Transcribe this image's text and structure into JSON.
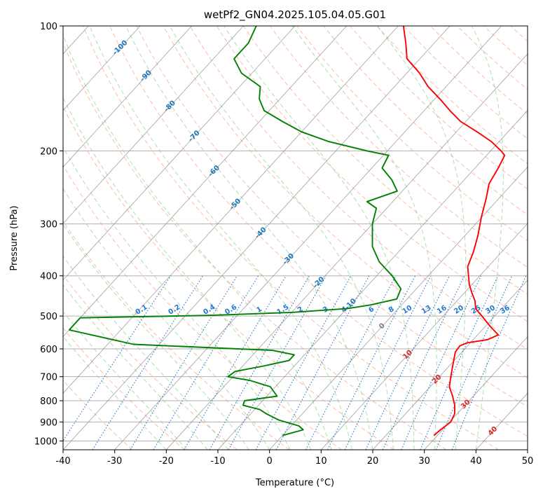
{
  "chart_data": {
    "type": "line",
    "subtype": "skew-t log-p",
    "title": "wetPf2_GN04.2025.105.04.05.G01",
    "xlabel": "Temperature (°C)",
    "ylabel": "Pressure (hPa)",
    "xlim": [
      -40,
      50
    ],
    "ylim": [
      1050,
      100
    ],
    "y_scale": "log",
    "grid": true,
    "x_ticks": [
      -40,
      -30,
      -20,
      -10,
      0,
      10,
      20,
      30,
      40,
      50
    ],
    "y_ticks": [
      100,
      200,
      300,
      400,
      500,
      600,
      700,
      800,
      900,
      1000
    ],
    "series": [
      {
        "role": "temperature",
        "color": "#ff0000",
        "points": [
          [
            29.3,
            970
          ],
          [
            29.6,
            940
          ],
          [
            30.2,
            900
          ],
          [
            29.5,
            860
          ],
          [
            28.0,
            820
          ],
          [
            26.0,
            780
          ],
          [
            23.7,
            740
          ],
          [
            22.2,
            700
          ],
          [
            20.3,
            650
          ],
          [
            18.7,
            610
          ],
          [
            18.5,
            590
          ],
          [
            19.4,
            580
          ],
          [
            22.8,
            570
          ],
          [
            24.0,
            555
          ],
          [
            21.0,
            530
          ],
          [
            17.5,
            500
          ],
          [
            15.0,
            480
          ],
          [
            13.5,
            460
          ],
          [
            11.5,
            440
          ],
          [
            9.5,
            420
          ],
          [
            7.8,
            400
          ],
          [
            6.0,
            380
          ],
          [
            4.5,
            350
          ],
          [
            2.5,
            320
          ],
          [
            0.0,
            290
          ],
          [
            -2.5,
            260
          ],
          [
            -4.5,
            240
          ],
          [
            -5.5,
            220
          ],
          [
            -6.5,
            205
          ],
          [
            -8.0,
            200
          ],
          [
            -11.5,
            190
          ],
          [
            -16.0,
            180
          ],
          [
            -21.0,
            170
          ],
          [
            -25.0,
            160
          ],
          [
            -29.0,
            150
          ],
          [
            -33.5,
            140
          ],
          [
            -37.5,
            130
          ],
          [
            -42.5,
            120
          ],
          [
            -45.5,
            110
          ],
          [
            -49.0,
            100
          ]
        ]
      },
      {
        "role": "dewpoint",
        "color": "#008000",
        "points": [
          [
            0.0,
            970
          ],
          [
            3.0,
            940
          ],
          [
            1.5,
            920
          ],
          [
            -3.5,
            890
          ],
          [
            -7.0,
            860
          ],
          [
            -9.0,
            840
          ],
          [
            -13.0,
            820
          ],
          [
            -13.5,
            800
          ],
          [
            -8.0,
            780
          ],
          [
            -11.0,
            740
          ],
          [
            -16.0,
            715
          ],
          [
            -21.0,
            700
          ],
          [
            -20.5,
            680
          ],
          [
            -16.0,
            660
          ],
          [
            -12.0,
            640
          ],
          [
            -12.0,
            620
          ],
          [
            -17.0,
            605
          ],
          [
            -45.0,
            585
          ],
          [
            -60.0,
            540
          ],
          [
            -60.0,
            505
          ],
          [
            -35.0,
            498
          ],
          [
            -20.0,
            490
          ],
          [
            -10.0,
            480
          ],
          [
            -6.0,
            470
          ],
          [
            -2.0,
            455
          ],
          [
            -3.0,
            430
          ],
          [
            -7.0,
            400
          ],
          [
            -12.0,
            370
          ],
          [
            -16.0,
            340
          ],
          [
            -20.0,
            300
          ],
          [
            -22.0,
            275
          ],
          [
            -25.0,
            265
          ],
          [
            -21.0,
            250
          ],
          [
            -24.0,
            235
          ],
          [
            -28.0,
            220
          ],
          [
            -29.0,
            205
          ],
          [
            -34.0,
            200
          ],
          [
            -43.0,
            190
          ],
          [
            -50.0,
            180
          ],
          [
            -55.5,
            170
          ],
          [
            -61.0,
            160
          ],
          [
            -64.0,
            150
          ],
          [
            -66.0,
            140
          ],
          [
            -72.0,
            130
          ],
          [
            -76.0,
            120
          ],
          [
            -76.0,
            110
          ],
          [
            -77.5,
            100
          ]
        ]
      }
    ],
    "isotherm_labels": [
      {
        "t": -100,
        "p": 112
      },
      {
        "t": -90,
        "p": 131
      },
      {
        "t": -80,
        "p": 155
      },
      {
        "t": -70,
        "p": 183
      },
      {
        "t": -60,
        "p": 222
      },
      {
        "t": -50,
        "p": 267
      },
      {
        "t": -40,
        "p": 313
      },
      {
        "t": -30,
        "p": 362
      },
      {
        "t": -20,
        "p": 412
      },
      {
        "t": -10,
        "p": 465
      },
      {
        "t": 0,
        "p": 525
      },
      {
        "t": 10,
        "p": 615
      },
      {
        "t": 20,
        "p": 705
      },
      {
        "t": 30,
        "p": 810
      },
      {
        "t": 40,
        "p": 940
      }
    ],
    "mixing_ratio_labels": [
      "0.1",
      "0.2",
      "0.4",
      "0.6",
      "1",
      "1.5",
      "2",
      "3",
      "4",
      "6",
      "8",
      "10",
      "13",
      "16",
      "20",
      "25",
      "30",
      "36"
    ],
    "colors": {
      "grid": "#b0b0b0",
      "isotherm": "#808080",
      "dry_adiabat": "#ff8c69",
      "moist_adiabat": "#8fcf8f",
      "mixing_ratio": "#1f78d1",
      "label_cold": "#1f77b4",
      "label_zero": "#808080",
      "label_warm": "#d62728"
    }
  }
}
